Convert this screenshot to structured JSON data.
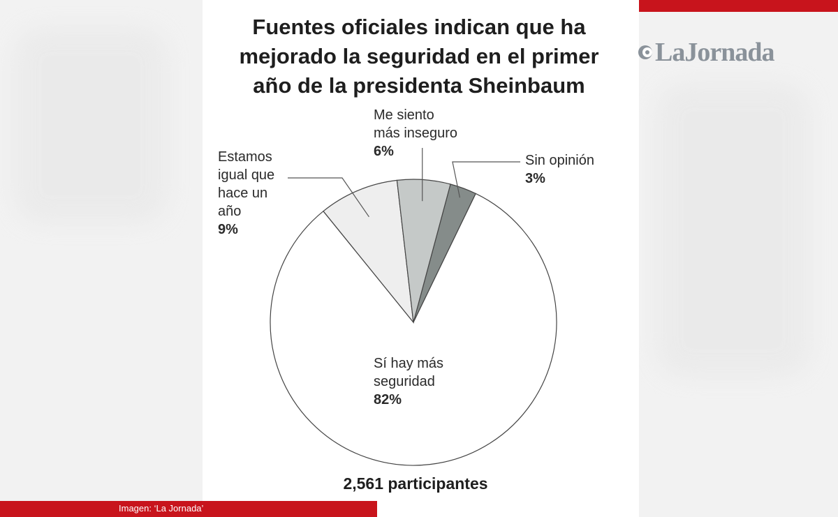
{
  "title": "Fuentes oficiales indican que ha mejorado la seguridad en el primer año de la presidenta Sheinbaum",
  "logo": {
    "text": "LaJornada",
    "icon": "jornada-logo-icon"
  },
  "caption": "Imagen: ‘La Jornada’",
  "participants": "2,561 participantes",
  "colors": {
    "accent": "#c8141c",
    "slice_main": "#ffffff",
    "slice_equal": "#eeeeee",
    "slice_insecure": "#c5c9c8",
    "slice_noopinion": "#858c8a",
    "stroke": "#444444"
  },
  "chart_data": {
    "type": "pie",
    "title": "Fuentes oficiales indican que ha mejorado la seguridad en el primer año de la presidenta Sheinbaum",
    "start_angle_deg": 15,
    "direction": "clockwise",
    "slices": [
      {
        "label": "Sin opinión",
        "value": 3,
        "display": "3%"
      },
      {
        "label": "Sí hay más seguridad",
        "value": 82,
        "display": "82%"
      },
      {
        "label": "Estamos igual que hace un año",
        "value": 9,
        "display": "9%"
      },
      {
        "label": "Me siento más inseguro",
        "value": 6,
        "display": "6%"
      }
    ],
    "labels": {
      "noopinion": {
        "text": "Sin opinión",
        "pct": "3%"
      },
      "main": {
        "text": "Sí hay más\nseguridad",
        "pct": "82%"
      },
      "equal": {
        "text": "Estamos\nigual que\nhace un\naño",
        "pct": "9%"
      },
      "insecure": {
        "text": "Me siento\nmás inseguro",
        "pct": "6%"
      }
    },
    "total_note": "2,561 participantes"
  }
}
